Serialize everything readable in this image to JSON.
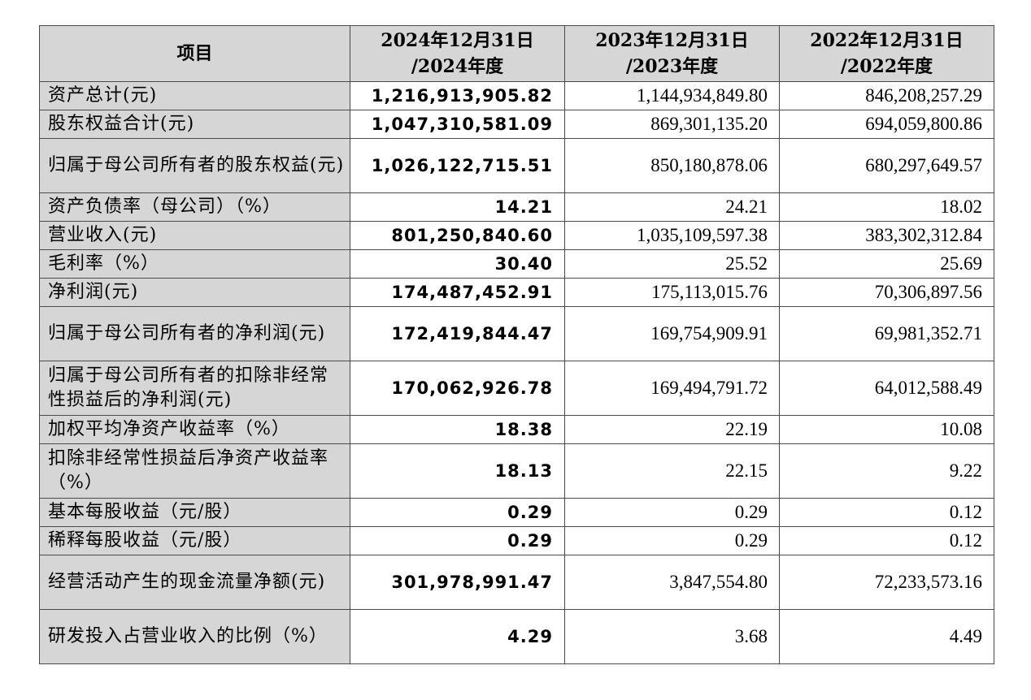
{
  "table": {
    "headers": [
      "项目",
      "2024年12月31日\n/2024年度",
      "2023年12月31日\n/2023年度",
      "2022年12月31日\n/2022年度"
    ],
    "rows": [
      {
        "label": "资产总计(元)",
        "v2024": "1,216,913,905.82",
        "v2023": "1,144,934,849.80",
        "v2022": "846,208,257.29"
      },
      {
        "label": "股东权益合计(元)",
        "v2024": "1,047,310,581.09",
        "v2023": "869,301,135.20",
        "v2022": "694,059,800.86"
      },
      {
        "label": "归属于母公司所有者的股东权益(元)",
        "v2024": "1,026,122,715.51",
        "v2023": "850,180,878.06",
        "v2022": "680,297,649.57"
      },
      {
        "label": "资产负债率（母公司）（%）",
        "v2024": "14.21",
        "v2023": "24.21",
        "v2022": "18.02"
      },
      {
        "label": "营业收入(元)",
        "v2024": "801,250,840.60",
        "v2023": "1,035,109,597.38",
        "v2022": "383,302,312.84"
      },
      {
        "label": "毛利率（%）",
        "v2024": "30.40",
        "v2023": "25.52",
        "v2022": "25.69"
      },
      {
        "label": "净利润(元)",
        "v2024": "174,487,452.91",
        "v2023": "175,113,015.76",
        "v2022": "70,306,897.56"
      },
      {
        "label": "归属于母公司所有者的净利润(元)",
        "v2024": "172,419,844.47",
        "v2023": "169,754,909.91",
        "v2022": "69,981,352.71"
      },
      {
        "label": "归属于母公司所有者的扣除非经常性损益后的净利润(元)",
        "v2024": "170,062,926.78",
        "v2023": "169,494,791.72",
        "v2022": "64,012,588.49"
      },
      {
        "label": "加权平均净资产收益率（%）",
        "v2024": "18.38",
        "v2023": "22.19",
        "v2022": "10.08"
      },
      {
        "label": "扣除非经常性损益后净资产收益率（%）",
        "v2024": "18.13",
        "v2023": "22.15",
        "v2022": "9.22"
      },
      {
        "label": "基本每股收益（元/股）",
        "v2024": "0.29",
        "v2023": "0.29",
        "v2022": "0.12"
      },
      {
        "label": "稀释每股收益（元/股）",
        "v2024": "0.29",
        "v2023": "0.29",
        "v2022": "0.12"
      },
      {
        "label": "经营活动产生的现金流量净额(元)",
        "v2024": "301,978,991.47",
        "v2023": "3,847,554.80",
        "v2022": "72,233,573.16"
      },
      {
        "label": "研发投入占营业收入的比例（%）",
        "v2024": "4.29",
        "v2023": "3.68",
        "v2022": "4.49"
      }
    ]
  }
}
